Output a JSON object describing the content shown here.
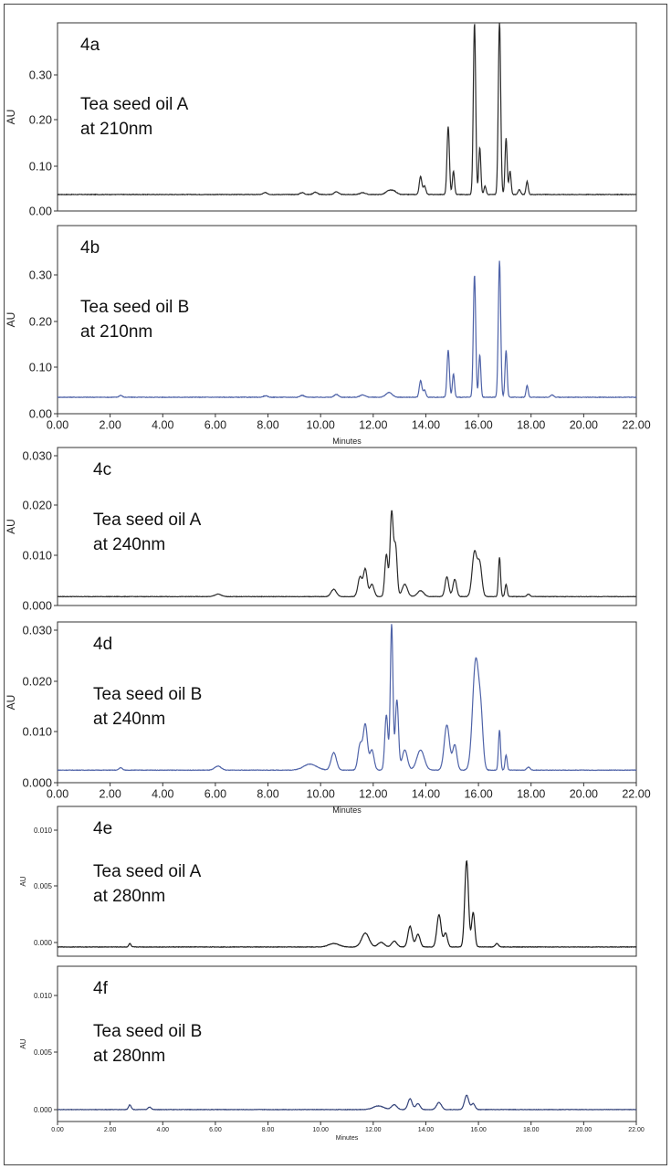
{
  "chart_data": [
    {
      "type": "line",
      "panel": "4a",
      "annotation": [
        "Tea seed oil A",
        "at 210nm"
      ],
      "ylabel": "AU",
      "yticks": [
        "0.00",
        "0.10",
        "0.20",
        "0.30"
      ],
      "ylim": [
        0,
        0.4
      ],
      "xlim": [
        0,
        22
      ],
      "xticks": [],
      "xlabel": "",
      "color": "#2b2b2b",
      "baseline": 0.035,
      "peaks": [
        [
          7.9,
          0.004,
          0.08
        ],
        [
          9.3,
          0.004,
          0.08
        ],
        [
          9.8,
          0.005,
          0.08
        ],
        [
          10.6,
          0.006,
          0.08
        ],
        [
          11.6,
          0.004,
          0.1
        ],
        [
          12.6,
          0.008,
          0.12
        ],
        [
          12.8,
          0.006,
          0.1
        ],
        [
          13.8,
          0.038,
          0.05
        ],
        [
          13.95,
          0.018,
          0.05
        ],
        [
          14.85,
          0.145,
          0.045
        ],
        [
          15.05,
          0.05,
          0.04
        ],
        [
          15.85,
          0.365,
          0.045
        ],
        [
          16.05,
          0.1,
          0.04
        ],
        [
          16.25,
          0.018,
          0.04
        ],
        [
          16.8,
          0.37,
          0.045
        ],
        [
          17.05,
          0.12,
          0.04
        ],
        [
          17.2,
          0.05,
          0.04
        ],
        [
          17.55,
          0.01,
          0.05
        ],
        [
          17.85,
          0.028,
          0.04
        ]
      ]
    },
    {
      "type": "line",
      "panel": "4b",
      "annotation": [
        "Tea seed oil B",
        "at 210nm"
      ],
      "ylabel": "AU",
      "yticks": [
        "0.00",
        "0.10",
        "0.20",
        "0.30"
      ],
      "ylim": [
        0,
        0.4
      ],
      "xlim": [
        0,
        22
      ],
      "xticks": [
        "0.00",
        "2.00",
        "4.00",
        "6.00",
        "8.00",
        "10.00",
        "12.00",
        "14.00",
        "16.00",
        "18.00",
        "20.00",
        "22.00"
      ],
      "xlabel": "Minutes",
      "color": "#4f63a8",
      "baseline": 0.035,
      "peaks": [
        [
          2.4,
          0.004,
          0.06
        ],
        [
          7.9,
          0.003,
          0.08
        ],
        [
          9.3,
          0.004,
          0.08
        ],
        [
          10.6,
          0.006,
          0.08
        ],
        [
          11.6,
          0.005,
          0.1
        ],
        [
          12.6,
          0.01,
          0.12
        ],
        [
          13.8,
          0.035,
          0.05
        ],
        [
          13.95,
          0.015,
          0.05
        ],
        [
          14.85,
          0.1,
          0.045
        ],
        [
          15.05,
          0.05,
          0.04
        ],
        [
          15.85,
          0.26,
          0.045
        ],
        [
          16.05,
          0.09,
          0.04
        ],
        [
          16.8,
          0.29,
          0.045
        ],
        [
          17.05,
          0.1,
          0.04
        ],
        [
          17.85,
          0.025,
          0.04
        ],
        [
          18.8,
          0.005,
          0.06
        ]
      ]
    },
    {
      "type": "line",
      "panel": "4c",
      "annotation": [
        "Tea seed oil A",
        "at 240nm"
      ],
      "ylabel": "AU",
      "yticks": [
        "0.000",
        "0.010",
        "0.020",
        "0.030"
      ],
      "ylim": [
        0,
        0.032
      ],
      "xlim": [
        0,
        22
      ],
      "xticks": [],
      "xlabel": "",
      "color": "#2b2b2b",
      "baseline": 0.0018,
      "peaks": [
        [
          6.1,
          0.0005,
          0.12
        ],
        [
          10.5,
          0.0015,
          0.1
        ],
        [
          11.5,
          0.004,
          0.08
        ],
        [
          11.7,
          0.0055,
          0.07
        ],
        [
          11.95,
          0.0025,
          0.08
        ],
        [
          12.5,
          0.0085,
          0.06
        ],
        [
          12.7,
          0.017,
          0.06
        ],
        [
          12.85,
          0.01,
          0.06
        ],
        [
          13.2,
          0.0025,
          0.1
        ],
        [
          13.8,
          0.0012,
          0.12
        ],
        [
          14.8,
          0.004,
          0.07
        ],
        [
          15.1,
          0.0035,
          0.07
        ],
        [
          15.85,
          0.009,
          0.09
        ],
        [
          16.05,
          0.0065,
          0.08
        ],
        [
          16.8,
          0.008,
          0.04
        ],
        [
          17.05,
          0.0025,
          0.04
        ],
        [
          17.9,
          0.0005,
          0.06
        ]
      ]
    },
    {
      "type": "line",
      "panel": "4d",
      "annotation": [
        "Tea seed oil B",
        "at 240nm"
      ],
      "ylabel": "AU",
      "yticks": [
        "0.000",
        "0.010",
        "0.020",
        "0.030"
      ],
      "ylim": [
        0,
        0.032
      ],
      "xlim": [
        0,
        22
      ],
      "xticks": [
        "0.00",
        "2.00",
        "4.00",
        "6.00",
        "8.00",
        "10.00",
        "12.00",
        "14.00",
        "16.00",
        "18.00",
        "20.00",
        "22.00"
      ],
      "xlabel": "Minutes",
      "color": "#4f63a8",
      "baseline": 0.0025,
      "peaks": [
        [
          2.4,
          0.0005,
          0.06
        ],
        [
          6.1,
          0.0008,
          0.12
        ],
        [
          9.6,
          0.0012,
          0.25
        ],
        [
          10.5,
          0.0035,
          0.1
        ],
        [
          11.5,
          0.005,
          0.08
        ],
        [
          11.7,
          0.009,
          0.08
        ],
        [
          11.95,
          0.004,
          0.08
        ],
        [
          12.5,
          0.011,
          0.06
        ],
        [
          12.7,
          0.029,
          0.05
        ],
        [
          12.9,
          0.014,
          0.06
        ],
        [
          13.2,
          0.004,
          0.1
        ],
        [
          13.8,
          0.004,
          0.14
        ],
        [
          14.8,
          0.009,
          0.1
        ],
        [
          15.1,
          0.005,
          0.08
        ],
        [
          15.9,
          0.022,
          0.12
        ],
        [
          16.1,
          0.008,
          0.08
        ],
        [
          16.8,
          0.008,
          0.04
        ],
        [
          17.05,
          0.003,
          0.04
        ],
        [
          17.9,
          0.0006,
          0.06
        ]
      ]
    },
    {
      "type": "line",
      "panel": "4e",
      "annotation": [
        "Tea seed oil A",
        "at 280nm"
      ],
      "ylabel": "AU",
      "yticks": [
        "0.000",
        "0.005",
        "0.010"
      ],
      "ylim": [
        -0.0008,
        0.0122
      ],
      "xlim": [
        0,
        22
      ],
      "xticks": [],
      "xlabel": "",
      "color": "#1b1b1b",
      "baseline": 0.0,
      "peaks": [
        [
          2.75,
          0.0003,
          0.04
        ],
        [
          10.5,
          0.0003,
          0.2
        ],
        [
          11.7,
          0.0012,
          0.14
        ],
        [
          12.3,
          0.0004,
          0.12
        ],
        [
          12.8,
          0.0005,
          0.1
        ],
        [
          13.4,
          0.0018,
          0.08
        ],
        [
          13.7,
          0.0011,
          0.08
        ],
        [
          14.5,
          0.0028,
          0.08
        ],
        [
          14.75,
          0.0012,
          0.07
        ],
        [
          15.55,
          0.0075,
          0.07
        ],
        [
          15.8,
          0.003,
          0.06
        ],
        [
          16.7,
          0.0003,
          0.06
        ]
      ]
    },
    {
      "type": "line",
      "panel": "4f",
      "annotation": [
        "Tea seed oil B",
        "at 280nm"
      ],
      "ylabel": "AU",
      "yticks": [
        "0.000",
        "0.005",
        "0.010"
      ],
      "ylim": [
        -0.0008,
        0.0122
      ],
      "xlim": [
        0,
        22
      ],
      "xticks": [
        "0.00",
        "2.00",
        "4.00",
        "6.00",
        "8.00",
        "10.00",
        "12.00",
        "14.00",
        "16.00",
        "18.00",
        "20.00",
        "22.00"
      ],
      "xlabel": "Minutes",
      "color": "#34437a",
      "baseline": 0.0002,
      "peaks": [
        [
          2.75,
          0.0004,
          0.05
        ],
        [
          3.5,
          0.0002,
          0.06
        ],
        [
          12.2,
          0.0003,
          0.2
        ],
        [
          12.8,
          0.0004,
          0.1
        ],
        [
          13.4,
          0.0009,
          0.08
        ],
        [
          13.7,
          0.0005,
          0.08
        ],
        [
          14.5,
          0.0006,
          0.09
        ],
        [
          15.55,
          0.0012,
          0.08
        ],
        [
          15.8,
          0.0005,
          0.07
        ]
      ]
    }
  ]
}
